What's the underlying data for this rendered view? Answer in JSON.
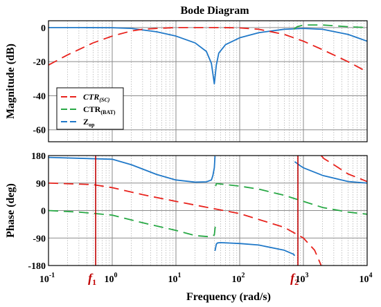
{
  "chart_data": {
    "type": "line",
    "title": "Bode Diagram",
    "xlabel": "Frequency  (rad/s)",
    "xscale": "log",
    "xlim": [
      0.1,
      10000
    ],
    "x_ticks": [
      {
        "value": 0.1,
        "base": "10",
        "exp": "-1"
      },
      {
        "value": 1,
        "base": "10",
        "exp": "0"
      },
      {
        "value": 10,
        "base": "10",
        "exp": "1"
      },
      {
        "value": 100,
        "base": "10",
        "exp": "2"
      },
      {
        "value": 1000,
        "base": "10",
        "exp": "3"
      },
      {
        "value": 10000,
        "base": "10",
        "exp": "4"
      }
    ],
    "grid": true,
    "colors": {
      "ctr_sc": "#e8221c",
      "ctr_bat": "#27a844",
      "zop": "#1f78c8",
      "marker": "#c00000"
    },
    "legend": {
      "placement": "lower-left of magnitude panel",
      "entries": [
        {
          "key": "ctr_sc",
          "text": "CTR",
          "sub": "(SC)",
          "italic": true
        },
        {
          "key": "ctr_bat",
          "text": "CTR",
          "sub": "(BAT)",
          "italic": false
        },
        {
          "key": "zop",
          "text": "Z",
          "sub": "op",
          "italic": false
        }
      ]
    },
    "markers": [
      {
        "value": 0.55,
        "label": "f",
        "sub": "1"
      },
      {
        "value": 820,
        "label": "f",
        "sub": "2"
      }
    ],
    "magnitude": {
      "ylabel": "Magnitude (dB)",
      "ylim": [
        -67,
        4
      ],
      "yticks": [
        0,
        -20,
        -40,
        -60
      ],
      "series": [
        {
          "key": "zop",
          "x": [
            0.1,
            0.3,
            1,
            2,
            5,
            10,
            20,
            30,
            36,
            40,
            43,
            47,
            60,
            100,
            200,
            500,
            1000,
            2000,
            5000,
            10000
          ],
          "y": [
            0,
            0,
            -0.1,
            -0.5,
            -2.5,
            -5,
            -9,
            -14,
            -21,
            -33,
            -22,
            -15,
            -10,
            -6,
            -3,
            -1,
            -0.5,
            -1,
            -4,
            -8
          ]
        },
        {
          "key": "ctr_sc",
          "x": [
            0.1,
            0.2,
            0.5,
            1,
            2,
            3,
            5,
            10,
            50,
            100,
            200,
            500,
            1000,
            2000,
            5000,
            10000
          ],
          "y": [
            -22,
            -16,
            -9,
            -5,
            -2,
            -1,
            -0.5,
            0,
            0,
            -0.2,
            -1,
            -4,
            -8,
            -13,
            -20,
            -26
          ]
        },
        {
          "key": "ctr_bat",
          "x": [
            700,
            800,
            1000,
            2000,
            5000,
            10000
          ],
          "y": [
            -1,
            0.5,
            1.5,
            1.5,
            0.5,
            0
          ]
        }
      ]
    },
    "phase": {
      "ylabel": "Phase (deg)",
      "ylim": [
        -180,
        180
      ],
      "yticks": [
        180,
        90,
        0,
        -90,
        -180
      ],
      "series": [
        {
          "key": "zop",
          "x": [
            0.1,
            1,
            2,
            5,
            10,
            20,
            30,
            36,
            38,
            40,
            41
          ],
          "y": [
            174,
            168,
            150,
            118,
            100,
            93,
            94,
            100,
            115,
            140,
            178
          ]
        },
        {
          "key": "zop",
          "x": [
            41,
            43,
            45,
            50,
            100,
            200,
            500,
            700,
            730
          ],
          "y": [
            -132,
            -110,
            -106,
            -105,
            -108,
            -113,
            -130,
            -143,
            -148
          ]
        },
        {
          "key": "zop",
          "x": [
            730,
            900,
            1000,
            2000,
            5000,
            10000
          ],
          "y": [
            160,
            146,
            140,
            115,
            95,
            90
          ]
        },
        {
          "key": "ctr_sc",
          "x": [
            0.1,
            0.5,
            1,
            3,
            10,
            100,
            500,
            1000,
            1500,
            1900
          ],
          "y": [
            90,
            85,
            75,
            52,
            30,
            -10,
            -55,
            -90,
            -130,
            -180
          ]
        },
        {
          "key": "ctr_sc",
          "x": [
            1900,
            2100,
            3000,
            5000,
            10000
          ],
          "y": [
            180,
            170,
            150,
            120,
            95
          ]
        },
        {
          "key": "ctr_bat",
          "x": [
            0.1,
            0.3,
            1,
            3,
            10,
            20,
            35,
            40,
            42
          ],
          "y": [
            0,
            -5,
            -15,
            -40,
            -65,
            -82,
            -86,
            -80,
            -40
          ]
        },
        {
          "key": "ctr_bat",
          "x": [
            42,
            43,
            45,
            60,
            100,
            200,
            500,
            1000,
            2000,
            5000,
            10000
          ],
          "y": [
            80,
            88,
            88,
            85,
            80,
            70,
            50,
            30,
            10,
            -5,
            -12
          ]
        }
      ]
    }
  }
}
